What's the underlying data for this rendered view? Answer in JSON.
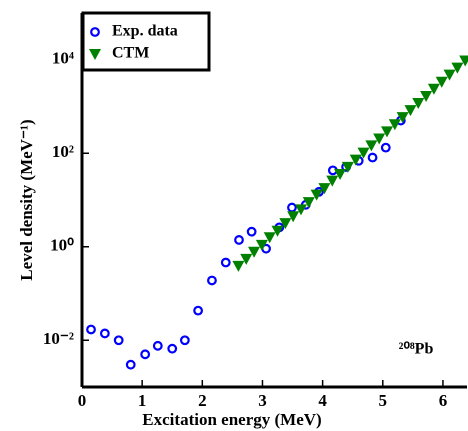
{
  "chart_data": {
    "type": "scatter",
    "xlabel": "Excitation energy (MeV)",
    "ylabel": "Level density (MeV⁻¹)",
    "annotation": "²⁰⁸Pb",
    "log_y": true,
    "legend": "upper left",
    "xlim": [
      0,
      6.4
    ],
    "ylim": [
      0.001,
      100000
    ],
    "xticks": [
      0,
      1,
      2,
      3,
      4,
      5,
      6
    ],
    "yticks": [
      {
        "value": 0.01,
        "label": "10⁻²"
      },
      {
        "value": 1,
        "label": "10⁰"
      },
      {
        "value": 100,
        "label": "10²"
      },
      {
        "value": 10000,
        "label": "10⁴"
      }
    ],
    "series": [
      {
        "name": "Exp. data",
        "color": "#0000ff",
        "marker": "circle",
        "x": [
          0.15,
          0.38,
          0.61,
          0.81,
          1.05,
          1.26,
          1.5,
          1.71,
          1.93,
          2.16,
          2.39,
          2.61,
          2.82,
          3.06,
          3.28,
          3.49,
          3.72,
          3.94,
          4.17,
          4.39,
          4.6,
          4.83,
          5.05,
          5.3
        ],
        "values": [
          0.017,
          0.014,
          0.01,
          0.003,
          0.005,
          0.0076,
          0.0066,
          0.01,
          0.043,
          0.19,
          0.46,
          1.4,
          2.1,
          0.91,
          2.6,
          6.9,
          7.9,
          15,
          43,
          51,
          69,
          81,
          132,
          500
        ]
      },
      {
        "name": "CTM",
        "color": "#008000",
        "marker": "triangle-down",
        "x": [
          2.6,
          2.73,
          2.86,
          2.99,
          3.12,
          3.25,
          3.38,
          3.51,
          3.64,
          3.77,
          3.9,
          4.03,
          4.16,
          4.29,
          4.42,
          4.55,
          4.68,
          4.81,
          4.94,
          5.07,
          5.2,
          5.33,
          5.46,
          5.59,
          5.72,
          5.85,
          5.98,
          6.11,
          6.24,
          6.37
        ],
        "values": [
          0.39,
          0.55,
          0.78,
          1.1,
          1.6,
          2.2,
          3.2,
          4.5,
          6.3,
          9.0,
          13,
          18,
          26,
          36,
          51,
          73,
          103,
          147,
          207,
          294,
          417,
          592,
          838,
          1190,
          1680,
          2390,
          3380,
          4800,
          6790,
          9640
        ]
      }
    ]
  }
}
